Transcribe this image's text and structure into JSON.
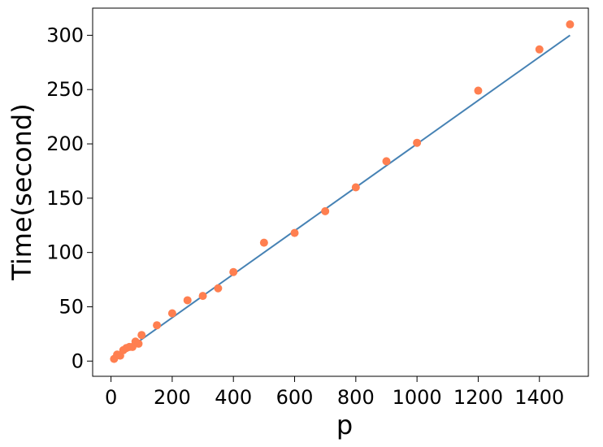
{
  "chart_data": {
    "type": "scatter",
    "title": "",
    "xlabel": "p",
    "ylabel": "Time(second)",
    "xlim": [
      -60,
      1560
    ],
    "ylim": [
      -14,
      325
    ],
    "xticks": [
      0,
      200,
      400,
      600,
      800,
      1000,
      1200,
      1400
    ],
    "yticks": [
      0,
      50,
      100,
      150,
      200,
      250,
      300
    ],
    "grid": false,
    "legend": "none",
    "series": [
      {
        "kind": "scatter",
        "color": "#ff7f50",
        "points": [
          [
            10,
            2
          ],
          [
            20,
            6
          ],
          [
            30,
            5
          ],
          [
            40,
            10
          ],
          [
            50,
            12
          ],
          [
            60,
            13
          ],
          [
            70,
            13
          ],
          [
            80,
            18
          ],
          [
            90,
            16
          ],
          [
            100,
            24
          ],
          [
            150,
            33
          ],
          [
            200,
            44
          ],
          [
            250,
            56
          ],
          [
            300,
            60
          ],
          [
            350,
            67
          ],
          [
            400,
            82
          ],
          [
            500,
            109
          ],
          [
            600,
            118
          ],
          [
            700,
            138
          ],
          [
            800,
            160
          ],
          [
            900,
            184
          ],
          [
            1000,
            201
          ],
          [
            1200,
            249
          ],
          [
            1400,
            287
          ],
          [
            1500,
            310
          ]
        ]
      },
      {
        "kind": "line",
        "color": "#4682b4",
        "points": [
          [
            0,
            0
          ],
          [
            1500,
            300
          ]
        ]
      }
    ]
  }
}
